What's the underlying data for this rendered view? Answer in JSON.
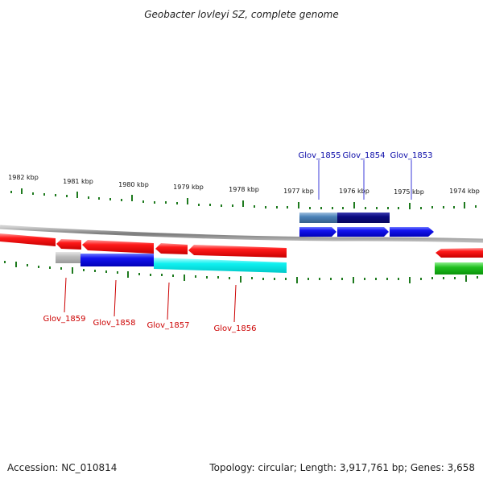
{
  "title": "Geobacter lovleyi SZ, complete genome",
  "footer": {
    "accession": "Accession: NC_010814",
    "summary": "Topology: circular; Length: 3,917,761 bp; Genes: 3,658"
  },
  "colors": {
    "backbone": "#8a8a8a",
    "tick": "#1e7a1e",
    "label_top": "#0a0aa8",
    "label_bottom": "#cc0000"
  },
  "kbp_labels": [
    "1982 kbp",
    "1981 kbp",
    "1980 kbp",
    "1979 kbp",
    "1978 kbp",
    "1977 kbp",
    "1976 kbp",
    "1975 kbp",
    "1974 kbp"
  ],
  "gene_labels_top": [
    "Glov_1855",
    "Glov_1854",
    "Glov_1853"
  ],
  "gene_labels_bottom": [
    "Glov_1859",
    "Glov_1858",
    "Glov_1857",
    "Glov_1856"
  ]
}
